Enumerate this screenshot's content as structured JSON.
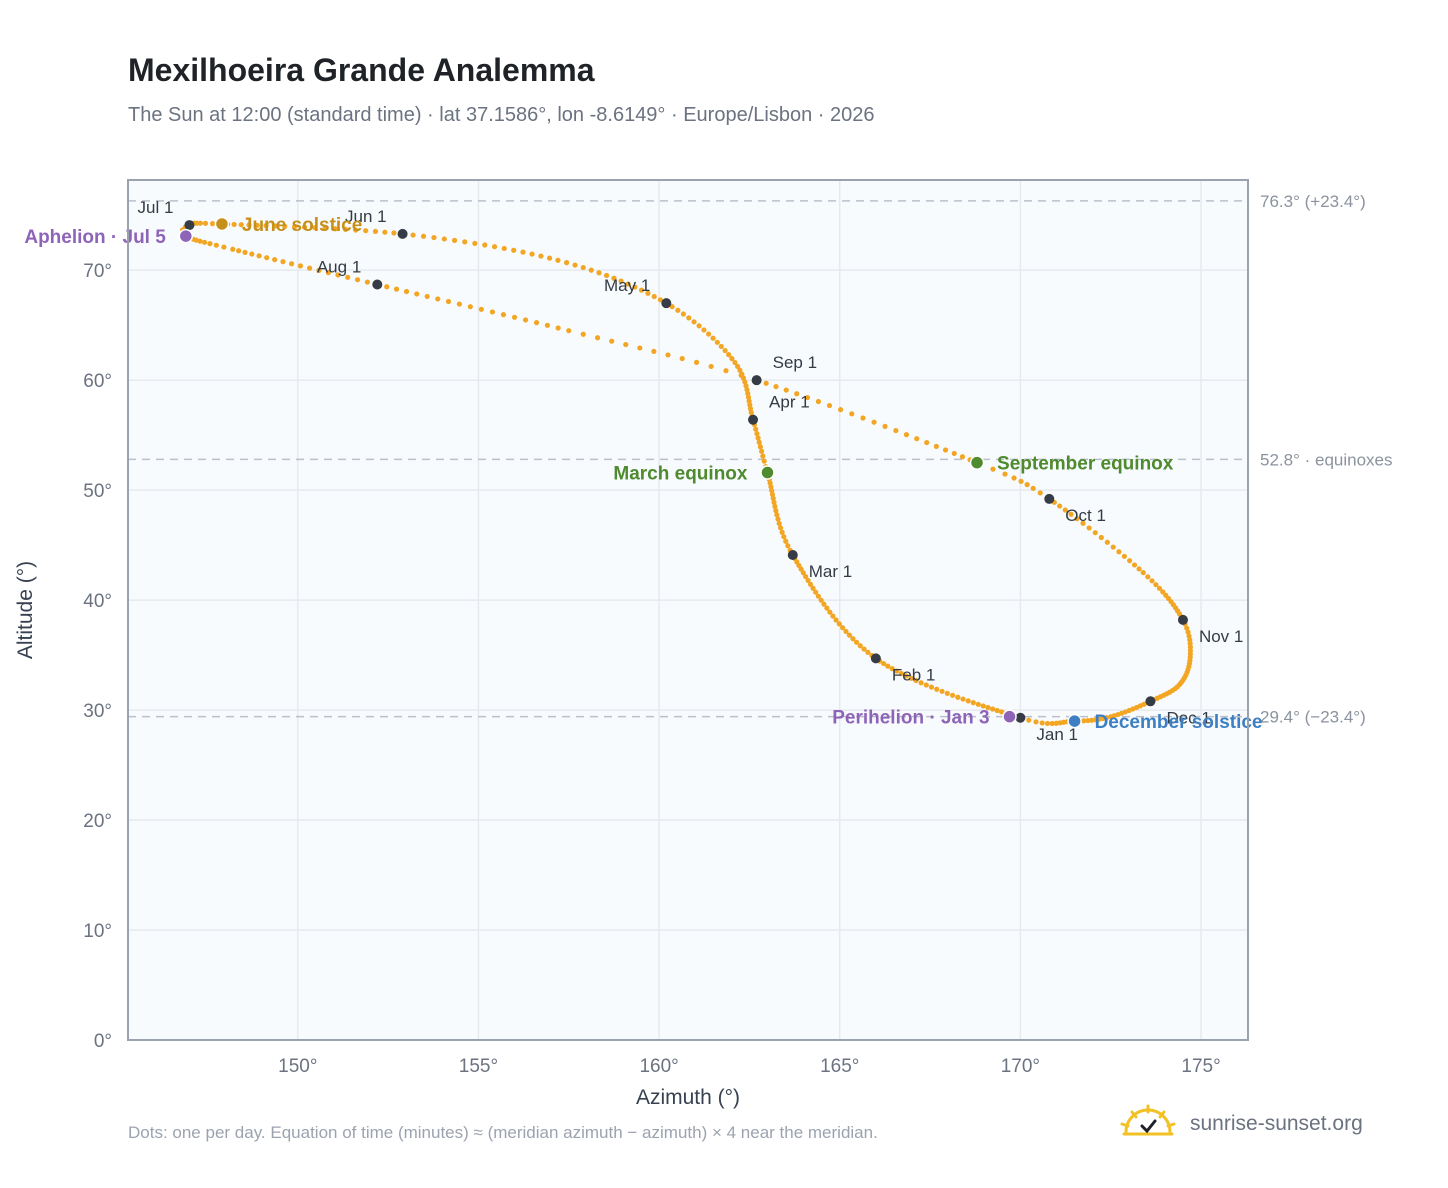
{
  "header": {
    "title": "Mexilhoeira Grande Analemma",
    "subtitle": "The Sun at 12:00 (standard time) · lat 37.1586°, lon -8.6149° · Europe/Lisbon · 2026"
  },
  "footer": {
    "note": "Dots: one per day. Equation of time (minutes) ≈ (meridian azimuth − azimuth) × 4 near the meridian.",
    "brand": "sunrise-sunset.org"
  },
  "colors": {
    "curve": "#f2a623",
    "plot_bg": "#f8fbfe",
    "grid": "#e6e9ee",
    "frame": "#9aa3ad",
    "ref_line": "#b9c0c9",
    "month_marker": "#363c45",
    "perihelion_aphelion": "#8e64b8",
    "june_solstice": "#c6901c",
    "equinox": "#4e8a2e",
    "december_solstice": "#3d7fc2",
    "logo_sun": "#f2c125"
  },
  "chart_data": {
    "type": "scatter",
    "xlabel": "Azimuth (°)",
    "ylabel": "Altitude (°)",
    "xlim": [
      145.3,
      176.3
    ],
    "ylim": [
      0,
      78.2
    ],
    "x_ticks": [
      150,
      155,
      160,
      165,
      170,
      175
    ],
    "x_tick_labels": [
      "150°",
      "155°",
      "160°",
      "165°",
      "170°",
      "175°"
    ],
    "y_ticks": [
      0,
      10,
      20,
      30,
      40,
      50,
      60,
      70
    ],
    "y_tick_labels": [
      "0°",
      "10°",
      "20°",
      "30°",
      "40°",
      "50°",
      "60°",
      "70°"
    ],
    "grid": true,
    "reference_lines": [
      {
        "y": 76.3,
        "label": "76.3° (+23.4°)"
      },
      {
        "y": 52.8,
        "label": "52.8° · equinoxes"
      },
      {
        "y": 29.4,
        "label": "29.4° (−23.4°)"
      }
    ],
    "path_anchors": [
      {
        "day": 0,
        "x": 170.0,
        "y": 29.3
      },
      {
        "day": 31,
        "x": 166.0,
        "y": 34.7
      },
      {
        "day": 59,
        "x": 163.7,
        "y": 44.1
      },
      {
        "day": 79,
        "x": 163.0,
        "y": 51.6
      },
      {
        "day": 90,
        "x": 162.6,
        "y": 56.4
      },
      {
        "day": 105,
        "x": 162.1,
        "y": 61.6
      },
      {
        "day": 120,
        "x": 160.2,
        "y": 67.0
      },
      {
        "day": 135,
        "x": 157.2,
        "y": 70.9
      },
      {
        "day": 151,
        "x": 152.9,
        "y": 73.3
      },
      {
        "day": 171,
        "x": 147.9,
        "y": 74.2
      },
      {
        "day": 181,
        "x": 147.0,
        "y": 74.1
      },
      {
        "day": 185,
        "x": 146.9,
        "y": 73.1
      },
      {
        "day": 195,
        "x": 148.2,
        "y": 71.9
      },
      {
        "day": 212,
        "x": 152.2,
        "y": 68.7
      },
      {
        "day": 230,
        "x": 157.5,
        "y": 64.5
      },
      {
        "day": 243,
        "x": 162.7,
        "y": 60.0
      },
      {
        "day": 265,
        "x": 168.8,
        "y": 52.5
      },
      {
        "day": 273,
        "x": 170.8,
        "y": 49.2
      },
      {
        "day": 290,
        "x": 173.4,
        "y": 42.5
      },
      {
        "day": 304,
        "x": 174.5,
        "y": 38.2
      },
      {
        "day": 314,
        "x": 174.7,
        "y": 34.8
      },
      {
        "day": 324,
        "x": 174.4,
        "y": 32.3
      },
      {
        "day": 334,
        "x": 173.6,
        "y": 30.8
      },
      {
        "day": 345,
        "x": 172.5,
        "y": 29.4
      },
      {
        "day": 354,
        "x": 171.5,
        "y": 29.0
      },
      {
        "day": 365,
        "x": 170.0,
        "y": 29.3
      }
    ],
    "month_markers": [
      {
        "label": "Jan 1",
        "x": 170.0,
        "y": 29.3,
        "pos": "below-right"
      },
      {
        "label": "Feb 1",
        "x": 166.0,
        "y": 34.7,
        "pos": "below-right"
      },
      {
        "label": "Mar 1",
        "x": 163.7,
        "y": 44.1,
        "pos": "below-right"
      },
      {
        "label": "Apr 1",
        "x": 162.6,
        "y": 56.4,
        "pos": "above-right"
      },
      {
        "label": "May 1",
        "x": 160.2,
        "y": 67.0,
        "pos": "above-left"
      },
      {
        "label": "Jun 1",
        "x": 152.9,
        "y": 73.3,
        "pos": "above-left"
      },
      {
        "label": "Jul 1",
        "x": 147.0,
        "y": 74.1,
        "pos": "above-left"
      },
      {
        "label": "Aug 1",
        "x": 152.2,
        "y": 68.7,
        "pos": "above-left"
      },
      {
        "label": "Sep 1",
        "x": 162.7,
        "y": 60.0,
        "pos": "above-right"
      },
      {
        "label": "Oct 1",
        "x": 170.8,
        "y": 49.2,
        "pos": "below-right"
      },
      {
        "label": "Nov 1",
        "x": 174.5,
        "y": 38.2,
        "pos": "below-right"
      },
      {
        "label": "Dec 1",
        "x": 173.6,
        "y": 30.8,
        "pos": "below-right"
      }
    ],
    "events": [
      {
        "label": "Aphelion · Jul 5",
        "x": 146.9,
        "y": 73.1,
        "color_key": "perihelion_aphelion",
        "side": "left"
      },
      {
        "label": "June solstice",
        "x": 147.9,
        "y": 74.2,
        "color_key": "june_solstice",
        "side": "right"
      },
      {
        "label": "March equinox",
        "x": 163.0,
        "y": 51.6,
        "color_key": "equinox",
        "side": "left"
      },
      {
        "label": "September equinox",
        "x": 168.8,
        "y": 52.5,
        "color_key": "equinox",
        "side": "right"
      },
      {
        "label": "Perihelion · Jan 3",
        "x": 169.7,
        "y": 29.4,
        "color_key": "perihelion_aphelion",
        "side": "left"
      },
      {
        "label": "December solstice",
        "x": 171.5,
        "y": 29.0,
        "color_key": "december_solstice",
        "side": "right"
      }
    ]
  }
}
